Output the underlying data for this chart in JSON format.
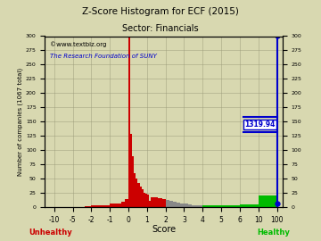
{
  "title": "Z-Score Histogram for ECF (2015)",
  "subtitle": "Sector: Financials",
  "watermark1": "©www.textbiz.org",
  "watermark2": "The Research Foundation of SUNY",
  "xlabel": "Score",
  "ylabel": "Number of companies (1067 total)",
  "xlabel_unhealthy": "Unhealthy",
  "xlabel_healthy": "Healthy",
  "ecf_zscore": 1319.94,
  "background_color": "#d8d8b0",
  "bar_color_red": "#cc0000",
  "bar_color_green": "#00bb00",
  "bar_color_gray": "#888888",
  "ecf_line_color": "#0000cc",
  "ecf_label_color": "#0000cc",
  "ecf_label_bg": "#ffffff",
  "title_color": "#000000",
  "subtitle_color": "#000000",
  "watermark1_color": "#000000",
  "watermark2_color": "#0000cc",
  "unhealthy_color": "#cc0000",
  "healthy_color": "#00bb00",
  "ytick_positions": [
    0,
    25,
    50,
    75,
    100,
    125,
    150,
    175,
    200,
    225,
    250,
    275,
    300
  ],
  "xtick_labels": [
    "-10",
    "-5",
    "-2",
    "-1",
    "0",
    "1",
    "2",
    "3",
    "4",
    "5",
    "6",
    "10",
    "100"
  ],
  "xtick_values": [
    -10,
    -5,
    -2,
    -1,
    0,
    1,
    2,
    3,
    4,
    5,
    6,
    10,
    100
  ],
  "bins_left": [
    -12,
    -11,
    -10,
    -9,
    -8,
    -7,
    -6,
    -5,
    -4,
    -3,
    -2.5,
    -2,
    -1.8,
    -1.6,
    -1.4,
    -1.2,
    -1.0,
    -0.8,
    -0.6,
    -0.4,
    -0.2,
    0.0,
    0.1,
    0.2,
    0.3,
    0.4,
    0.5,
    0.6,
    0.7,
    0.8,
    0.9,
    1.0,
    1.1,
    1.2,
    1.4,
    1.6,
    1.8,
    2.0,
    2.2,
    2.4,
    2.6,
    2.8,
    3.0,
    3.2,
    3.4,
    3.6,
    3.8,
    4.0,
    4.5,
    5.0,
    6.0,
    10,
    100
  ],
  "bins_right": [
    -11,
    -10,
    -9,
    -8,
    -7,
    -6,
    -5,
    -4,
    -3,
    -2.5,
    -2,
    -1.8,
    -1.6,
    -1.4,
    -1.2,
    -1.0,
    -0.8,
    -0.6,
    -0.4,
    -0.2,
    0.0,
    0.1,
    0.2,
    0.3,
    0.4,
    0.5,
    0.6,
    0.7,
    0.8,
    0.9,
    1.0,
    1.1,
    1.2,
    1.4,
    1.6,
    1.8,
    2.0,
    2.2,
    2.4,
    2.6,
    2.8,
    3.0,
    3.2,
    3.4,
    3.6,
    3.8,
    4.0,
    4.5,
    5.0,
    6.0,
    10,
    100,
    200
  ],
  "counts": [
    1,
    0,
    1,
    0,
    0,
    0,
    1,
    1,
    1,
    2,
    2,
    4,
    3,
    3,
    3,
    4,
    7,
    6,
    6,
    9,
    14,
    299,
    128,
    89,
    60,
    50,
    43,
    37,
    31,
    26,
    24,
    22,
    11,
    18,
    17,
    16,
    15,
    13,
    12,
    9,
    8,
    7,
    6,
    5,
    4,
    3,
    3,
    4,
    3,
    3,
    5,
    20,
    1
  ],
  "colors": [
    "red",
    "red",
    "red",
    "red",
    "red",
    "red",
    "red",
    "red",
    "red",
    "red",
    "red",
    "red",
    "red",
    "red",
    "red",
    "red",
    "red",
    "red",
    "red",
    "red",
    "red",
    "red",
    "red",
    "red",
    "red",
    "red",
    "red",
    "red",
    "red",
    "red",
    "red",
    "red",
    "red",
    "red",
    "red",
    "red",
    "red",
    "gray",
    "gray",
    "gray",
    "gray",
    "gray",
    "gray",
    "gray",
    "gray",
    "gray",
    "gray",
    "green",
    "green",
    "green",
    "green",
    "green",
    "green"
  ]
}
